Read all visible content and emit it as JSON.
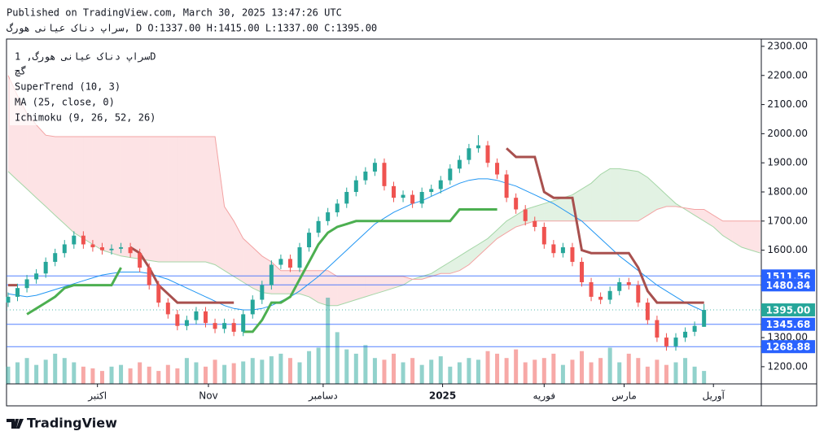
{
  "header": {
    "published": "Published on TradingView.com, March 30, 2025 13:47:26 UTC",
    "symbol_line": "سراپ دناک عیانی هورگ, D O:1337.00 H:1415.00 L:1337.00 C:1395.00"
  },
  "chart_data": {
    "type": "candlestick",
    "legend": {
      "symbol": "سراپ دناک عیانی هورگ, 1D",
      "subtitle": "گچ",
      "indicators": [
        "SuperTrend (10, 3)",
        "MA (25, close, 0)",
        "Ichimoku (9, 26, 52, 26)"
      ]
    },
    "xlim": [
      -0.17,
      80.09
    ],
    "xticks": [
      {
        "value": 9.5,
        "label": "اکتبر"
      },
      {
        "value": 21.3,
        "label": "Nov"
      },
      {
        "value": 33.5,
        "label": "دسامبر"
      },
      {
        "value": 46.2,
        "label": "2025"
      },
      {
        "value": 57,
        "label": "فوریه"
      },
      {
        "value": 65.5,
        "label": "مارس"
      },
      {
        "value": 75,
        "label": "آوریل"
      }
    ],
    "ylim": [
      1141,
      2325
    ],
    "yticks": [
      {
        "value": 1200,
        "label": "1200.00"
      },
      {
        "value": 1300,
        "label": "1300.00"
      },
      {
        "value": 1400,
        "label": "1400.00"
      },
      {
        "value": 1500,
        "label": "1500.00"
      },
      {
        "value": 1600,
        "label": "1600.00"
      },
      {
        "value": 1700,
        "label": "1700.00"
      },
      {
        "value": 1800,
        "label": "1800.00"
      },
      {
        "value": 1900,
        "label": "1900.00"
      },
      {
        "value": 2000,
        "label": "2000.00"
      },
      {
        "value": 2100,
        "label": "2100.00"
      },
      {
        "value": 2200,
        "label": "2200.00"
      },
      {
        "value": 2300,
        "label": "2300.00"
      }
    ],
    "up_color": "#26a69a",
    "down_color": "#ef5350",
    "open": [
      1420,
      1440,
      1470,
      1500,
      1520,
      1560,
      1590,
      1620,
      1650,
      1620,
      1610,
      1600,
      1605,
      1610,
      1590,
      1540,
      1480,
      1420,
      1380,
      1340,
      1360,
      1390,
      1350,
      1330,
      1350,
      1320,
      1380,
      1430,
      1480,
      1550,
      1570,
      1540,
      1610,
      1660,
      1700,
      1730,
      1760,
      1800,
      1840,
      1870,
      1900,
      1820,
      1780,
      1790,
      1760,
      1800,
      1810,
      1840,
      1880,
      1910,
      1950,
      1960,
      1900,
      1860,
      1780,
      1740,
      1700,
      1680,
      1620,
      1590,
      1610,
      1560,
      1490,
      1440,
      1430,
      1460,
      1490,
      1480,
      1420,
      1360,
      1300,
      1270,
      1300,
      1320,
      1337
    ],
    "high": [
      1455,
      1485,
      1515,
      1535,
      1575,
      1605,
      1635,
      1665,
      1665,
      1635,
      1625,
      1620,
      1625,
      1625,
      1605,
      1555,
      1495,
      1435,
      1395,
      1375,
      1405,
      1405,
      1365,
      1365,
      1365,
      1395,
      1445,
      1495,
      1565,
      1585,
      1585,
      1625,
      1675,
      1715,
      1745,
      1775,
      1815,
      1855,
      1885,
      1915,
      1915,
      1835,
      1805,
      1805,
      1815,
      1825,
      1855,
      1895,
      1925,
      1965,
      1995,
      1975,
      1915,
      1875,
      1795,
      1755,
      1715,
      1695,
      1635,
      1625,
      1625,
      1575,
      1505,
      1455,
      1475,
      1505,
      1505,
      1495,
      1435,
      1375,
      1315,
      1315,
      1335,
      1355,
      1415
    ],
    "low": [
      1405,
      1425,
      1455,
      1485,
      1505,
      1545,
      1575,
      1605,
      1605,
      1595,
      1585,
      1585,
      1590,
      1575,
      1525,
      1465,
      1405,
      1365,
      1325,
      1325,
      1345,
      1335,
      1315,
      1315,
      1305,
      1305,
      1365,
      1415,
      1465,
      1535,
      1525,
      1525,
      1595,
      1645,
      1685,
      1715,
      1745,
      1785,
      1825,
      1855,
      1805,
      1765,
      1765,
      1745,
      1745,
      1785,
      1795,
      1825,
      1865,
      1895,
      1935,
      1885,
      1845,
      1765,
      1725,
      1685,
      1665,
      1605,
      1575,
      1575,
      1545,
      1475,
      1425,
      1415,
      1415,
      1445,
      1465,
      1405,
      1345,
      1285,
      1255,
      1255,
      1285,
      1305,
      1337
    ],
    "close": [
      1440,
      1470,
      1500,
      1520,
      1560,
      1590,
      1620,
      1650,
      1620,
      1610,
      1600,
      1605,
      1610,
      1590,
      1540,
      1480,
      1420,
      1380,
      1340,
      1360,
      1390,
      1350,
      1330,
      1350,
      1320,
      1380,
      1430,
      1480,
      1550,
      1570,
      1540,
      1610,
      1660,
      1700,
      1730,
      1760,
      1800,
      1840,
      1870,
      1900,
      1820,
      1780,
      1790,
      1760,
      1800,
      1810,
      1840,
      1880,
      1910,
      1950,
      1960,
      1900,
      1860,
      1780,
      1740,
      1700,
      1680,
      1620,
      1590,
      1610,
      1560,
      1490,
      1440,
      1430,
      1460,
      1490,
      1480,
      1420,
      1360,
      1300,
      1270,
      1300,
      1320,
      1340,
      1395
    ],
    "vlim": [
      0,
      100
    ],
    "volume": [
      20,
      25,
      30,
      22,
      28,
      35,
      30,
      25,
      20,
      18,
      15,
      20,
      22,
      18,
      25,
      20,
      15,
      22,
      18,
      30,
      25,
      20,
      28,
      22,
      24,
      26,
      30,
      28,
      32,
      35,
      30,
      25,
      38,
      42,
      100,
      60,
      40,
      35,
      45,
      30,
      28,
      35,
      25,
      30,
      22,
      28,
      32,
      20,
      25,
      30,
      28,
      38,
      35,
      30,
      40,
      25,
      28,
      30,
      35,
      22,
      28,
      38,
      25,
      30,
      42,
      25,
      35,
      30,
      20,
      28,
      22,
      25,
      30,
      20,
      15
    ],
    "ma": {
      "color": "#2196f3",
      "values": [
        1450,
        1445,
        1440,
        1445,
        1455,
        1465,
        1475,
        1485,
        1495,
        1505,
        1515,
        1520,
        1525,
        1525,
        1525,
        1520,
        1510,
        1500,
        1485,
        1470,
        1455,
        1440,
        1425,
        1410,
        1400,
        1395,
        1395,
        1400,
        1410,
        1425,
        1440,
        1460,
        1485,
        1510,
        1540,
        1570,
        1600,
        1630,
        1660,
        1690,
        1710,
        1730,
        1745,
        1760,
        1770,
        1785,
        1800,
        1815,
        1830,
        1840,
        1845,
        1845,
        1840,
        1830,
        1820,
        1805,
        1790,
        1775,
        1760,
        1740,
        1720,
        1700,
        1670,
        1640,
        1610,
        1580,
        1555,
        1530,
        1505,
        1480,
        1460,
        1440,
        1420,
        1405,
        1390
      ]
    },
    "supertrend": {
      "up": {
        "color": "#4caf50",
        "values": [
          null,
          null,
          1380,
          1400,
          1420,
          1440,
          1470,
          1480,
          1480,
          1480,
          1480,
          1480,
          1540,
          null,
          null,
          null,
          null,
          null,
          null,
          null,
          null,
          null,
          null,
          null,
          null,
          1320,
          1320,
          1360,
          1420,
          1420,
          1440,
          1500,
          1560,
          1620,
          1660,
          1680,
          1690,
          1700,
          1700,
          1700,
          1700,
          1700,
          1700,
          1700,
          1700,
          1700,
          1700,
          1700,
          1740,
          1740,
          1740,
          1740,
          1740,
          null,
          null,
          null,
          null,
          null,
          null,
          null,
          null,
          null,
          null,
          null,
          null,
          null,
          null,
          null,
          null,
          null,
          null,
          null,
          null,
          null,
          null
        ]
      },
      "down": {
        "color": "#a8504e",
        "values": [
          1480,
          1480,
          null,
          null,
          null,
          null,
          null,
          null,
          null,
          null,
          null,
          null,
          null,
          1610,
          1590,
          1540,
          1480,
          1450,
          1420,
          1420,
          1420,
          1420,
          1420,
          1420,
          1420,
          null,
          null,
          null,
          null,
          null,
          null,
          null,
          null,
          null,
          null,
          null,
          null,
          null,
          null,
          null,
          null,
          null,
          null,
          null,
          null,
          null,
          null,
          null,
          null,
          null,
          null,
          null,
          null,
          1950,
          1920,
          1920,
          1920,
          1800,
          1780,
          1780,
          1780,
          1600,
          1590,
          1590,
          1590,
          1590,
          1590,
          1540,
          1460,
          1420,
          1420,
          1420,
          1420,
          1420,
          1420
        ]
      }
    },
    "ichimoku": {
      "span_a": {
        "color": "#a5d6a7",
        "values": [
          1870,
          1840,
          1810,
          1780,
          1750,
          1720,
          1690,
          1660,
          1640,
          1620,
          1600,
          1590,
          1580,
          1575,
          1570,
          1565,
          1560,
          1560,
          1560,
          1560,
          1560,
          1560,
          1550,
          1530,
          1510,
          1490,
          1470,
          1455,
          1450,
          1450,
          1450,
          1450,
          1440,
          1420,
          1410,
          1410,
          1420,
          1430,
          1440,
          1450,
          1460,
          1470,
          1480,
          1500,
          1510,
          1520,
          1540,
          1560,
          1580,
          1600,
          1620,
          1640,
          1670,
          1700,
          1720,
          1740,
          1750,
          1760,
          1770,
          1780,
          1790,
          1810,
          1830,
          1860,
          1880,
          1880,
          1875,
          1870,
          1850,
          1820,
          1790,
          1760,
          1740,
          1720,
          1700,
          1680,
          1650,
          1630,
          1610,
          1600,
          1590
        ]
      },
      "span_b": {
        "color": "#f3a3a3",
        "values": [
          2200,
          2130,
          2070,
          2030,
          1995,
          1990,
          1990,
          1990,
          1990,
          1990,
          1990,
          1990,
          1990,
          1990,
          1990,
          1990,
          1990,
          1990,
          1990,
          1990,
          1990,
          1990,
          1990,
          1750,
          1700,
          1640,
          1610,
          1580,
          1560,
          1530,
          1530,
          1530,
          1530,
          1530,
          1530,
          1510,
          1510,
          1510,
          1510,
          1510,
          1510,
          1510,
          1510,
          1500,
          1500,
          1510,
          1520,
          1520,
          1530,
          1550,
          1580,
          1610,
          1640,
          1660,
          1680,
          1690,
          1700,
          1700,
          1700,
          1700,
          1700,
          1700,
          1700,
          1700,
          1700,
          1700,
          1700,
          1700,
          1720,
          1740,
          1750,
          1750,
          1745,
          1740,
          1740,
          1720,
          1700,
          1700,
          1700,
          1700,
          1700
        ]
      },
      "up_fill": "rgba(76,175,80,0.16)",
      "down_fill": "rgba(242,54,69,0.14)"
    },
    "price_lines": [
      {
        "value": 1511.56,
        "label": "1511.56",
        "color": "#2962ff"
      },
      {
        "value": 1480.84,
        "label": "1480.84",
        "color": "#2962ff"
      },
      {
        "value": 1395,
        "label": "1395.00",
        "color": "#26a69a",
        "dashed": true
      },
      {
        "value": 1345.68,
        "label": "1345.68",
        "color": "#2962ff"
      },
      {
        "value": 1268.88,
        "label": "1268.88",
        "color": "#2962ff"
      }
    ]
  },
  "footer": {
    "brand": "TradingView"
  }
}
